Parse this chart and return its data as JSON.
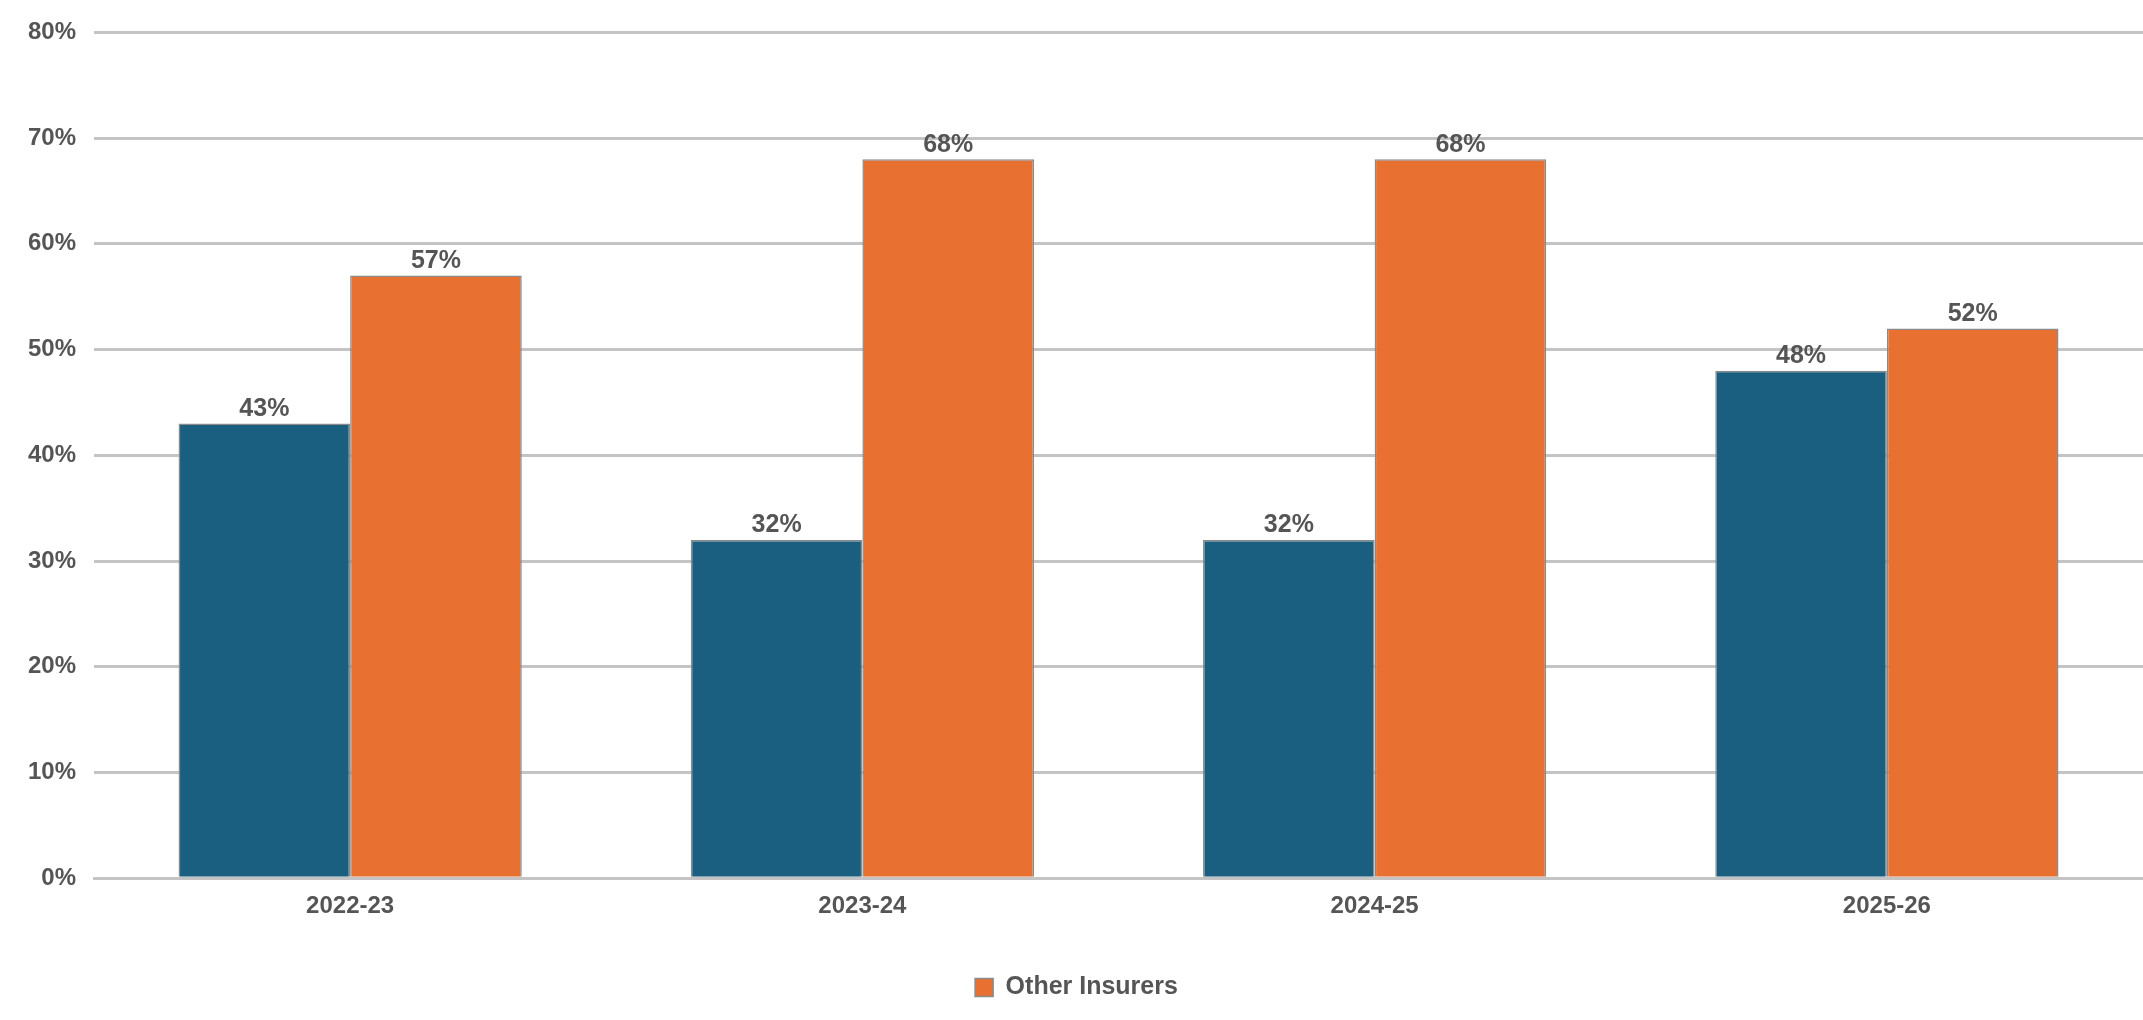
{
  "chart_data": {
    "type": "bar",
    "categories": [
      "2022-23",
      "2023-24",
      "2024-25",
      "2025-26"
    ],
    "series": [
      {
        "color": "#1a5e80",
        "values": [
          43,
          32,
          32,
          48
        ],
        "value_labels": [
          "43%",
          "32%",
          "32%",
          "48%"
        ]
      },
      {
        "name": "Other Insurers",
        "color": "#e87030",
        "values": [
          57,
          68,
          68,
          52
        ],
        "value_labels": [
          "57%",
          "68%",
          "68%",
          "52%"
        ]
      }
    ],
    "ylim": [
      0,
      80
    ],
    "yticks": [
      {
        "value": 0,
        "label": "0%"
      },
      {
        "value": 10,
        "label": "10%"
      },
      {
        "value": 20,
        "label": "20%"
      },
      {
        "value": 30,
        "label": "30%"
      },
      {
        "value": 40,
        "label": "40%"
      },
      {
        "value": 50,
        "label": "50%"
      },
      {
        "value": 60,
        "label": "60%"
      },
      {
        "value": 70,
        "label": "70%"
      },
      {
        "value": 80,
        "label": "80%"
      }
    ],
    "grid": "y",
    "legend": "bottom"
  }
}
